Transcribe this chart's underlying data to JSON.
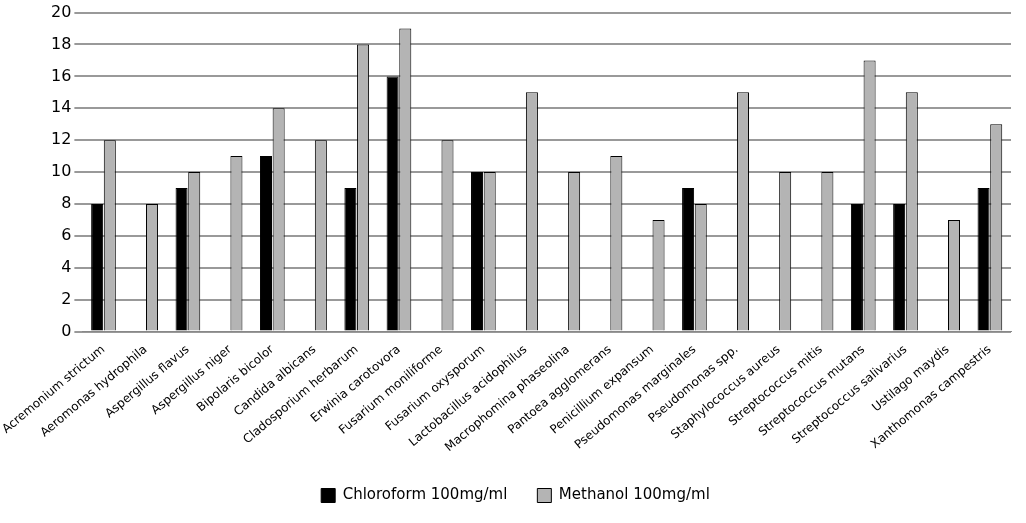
{
  "chart_data": {
    "type": "bar",
    "categories": [
      "Acremonium strictum",
      "Aeromonas hydrophila",
      "Aspergillus flavus",
      "Aspergillus niger",
      "Bipolaris bicolor",
      "Candida albicans",
      "Cladosporium herbarum",
      "Erwinia carotovora",
      "Fusarium moniliforme",
      "Fusarium oxysporum",
      "Lactobacillus acidophilus",
      "Macrophomina phaseolina",
      "Pantoea agglomerans",
      "Penicillium expansum",
      "Pseudomonas marginales",
      "Pseudomonas spp.",
      "Staphylococcus aureus",
      "Streptococcus mitis",
      "Streptococcus mutans",
      "Streptococcus salivarius",
      "Ustilago maydis",
      "Xanthomonas campestris"
    ],
    "series": [
      {
        "name": "Chloroform 100mg/ml",
        "color": "#000000",
        "values": [
          8,
          0,
          9,
          0,
          11,
          0,
          9,
          16,
          0,
          10,
          0,
          0,
          0,
          0,
          9,
          0,
          0,
          0,
          8,
          8,
          0,
          9
        ]
      },
      {
        "name": "Methanol 100mg/ml",
        "color": "#b4b4b4",
        "values": [
          12,
          8,
          10,
          11,
          14,
          12,
          18,
          19,
          12,
          10,
          15,
          10,
          11,
          7,
          8,
          15,
          10,
          10,
          17,
          15,
          7,
          13
        ]
      }
    ],
    "ylim": [
      0,
      20
    ],
    "yticks": [
      0,
      2,
      4,
      6,
      8,
      10,
      12,
      14,
      16,
      18,
      20
    ],
    "grid": "y",
    "legend": "bottom"
  }
}
